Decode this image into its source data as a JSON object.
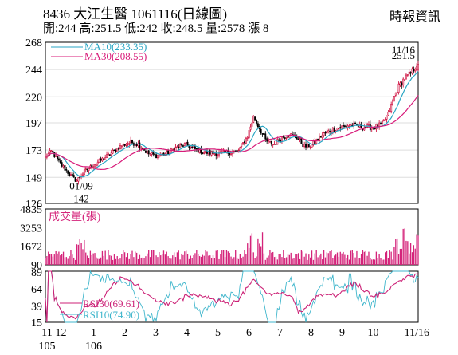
{
  "header": {
    "title": "8436  大江生醫 1061116(日線圖)",
    "source": "時報資訊",
    "ohlc_line": "開:244 高:251.5 低:242 收:248.5 量:2578 漲 8"
  },
  "colors": {
    "up": "#cc0033",
    "down": "#000000",
    "ma10": "#2aa6c4",
    "ma30": "#d81b7a",
    "volume": "#d4237a",
    "rsi10": "#3fb6cc",
    "rsi30": "#cc2277",
    "grid": "#dddddd",
    "frame": "#000000"
  },
  "chart_data": [
    {
      "type": "candlestick",
      "title": "",
      "ylim": [
        126,
        268
      ],
      "yticks": [
        "268",
        "244",
        "220",
        "197",
        "173",
        "149",
        "126"
      ],
      "grid": true,
      "legend": [
        {
          "key": "ma10",
          "label": "MA10(233.35)"
        },
        {
          "key": "ma30",
          "label": "MA30(208.55)"
        }
      ],
      "annotations": [
        {
          "text": "11/16",
          "x": 11.95,
          "y": 261
        },
        {
          "text": "251.5",
          "x": 11.95,
          "y": 256
        },
        {
          "text": "01/09",
          "x": 1.0,
          "y": 141
        },
        {
          "text": "142",
          "x": 1.0,
          "y": 130
        }
      ],
      "anchors": [
        {
          "x": 0.0,
          "y": 167
        },
        {
          "x": 0.2,
          "y": 172
        },
        {
          "x": 0.45,
          "y": 162
        },
        {
          "x": 0.8,
          "y": 151
        },
        {
          "x": 1.0,
          "y": 146
        },
        {
          "x": 1.25,
          "y": 154
        },
        {
          "x": 1.55,
          "y": 160
        },
        {
          "x": 2.0,
          "y": 168
        },
        {
          "x": 2.45,
          "y": 177
        },
        {
          "x": 2.75,
          "y": 180
        },
        {
          "x": 3.0,
          "y": 178
        },
        {
          "x": 3.3,
          "y": 170
        },
        {
          "x": 3.6,
          "y": 168
        },
        {
          "x": 3.9,
          "y": 170
        },
        {
          "x": 4.2,
          "y": 175
        },
        {
          "x": 4.5,
          "y": 178
        },
        {
          "x": 4.8,
          "y": 174
        },
        {
          "x": 5.1,
          "y": 171
        },
        {
          "x": 5.5,
          "y": 170
        },
        {
          "x": 5.9,
          "y": 171
        },
        {
          "x": 6.2,
          "y": 172
        },
        {
          "x": 6.5,
          "y": 185
        },
        {
          "x": 6.7,
          "y": 202
        },
        {
          "x": 6.9,
          "y": 192
        },
        {
          "x": 7.1,
          "y": 181
        },
        {
          "x": 7.35,
          "y": 178
        },
        {
          "x": 7.6,
          "y": 184
        },
        {
          "x": 7.85,
          "y": 187
        },
        {
          "x": 8.1,
          "y": 184
        },
        {
          "x": 8.35,
          "y": 176
        },
        {
          "x": 8.6,
          "y": 178
        },
        {
          "x": 8.9,
          "y": 186
        },
        {
          "x": 9.2,
          "y": 191
        },
        {
          "x": 9.5,
          "y": 193
        },
        {
          "x": 9.8,
          "y": 195
        },
        {
          "x": 10.1,
          "y": 194
        },
        {
          "x": 10.35,
          "y": 193
        },
        {
          "x": 10.6,
          "y": 193
        },
        {
          "x": 10.85,
          "y": 196
        },
        {
          "x": 11.05,
          "y": 205
        },
        {
          "x": 11.2,
          "y": 218
        },
        {
          "x": 11.35,
          "y": 228
        },
        {
          "x": 11.55,
          "y": 236
        },
        {
          "x": 11.75,
          "y": 240
        },
        {
          "x": 11.95,
          "y": 248.5
        }
      ]
    },
    {
      "type": "bar",
      "title": "成交量(張)",
      "ylim": [
        90,
        4835
      ],
      "yticks": [
        "4835",
        "3253",
        "1672",
        "90"
      ],
      "description": "daily trading volume in lots"
    },
    {
      "type": "line",
      "title": "RSI",
      "ylim": [
        15,
        90
      ],
      "yticks": [
        "89",
        "64",
        "39",
        "15"
      ],
      "legend": [
        {
          "key": "rsi30",
          "label": "RSI30(69.61)"
        },
        {
          "key": "rsi10",
          "label": "RSI10(74.90)"
        }
      ]
    }
  ],
  "x_axis": {
    "domain": [
      0,
      12
    ],
    "ticks": [
      {
        "x": 0.0,
        "label": "11",
        "sub": "105"
      },
      {
        "x": 0.5,
        "label": "12",
        "sub": ""
      },
      {
        "x": 1.55,
        "label": "1",
        "sub": "106"
      },
      {
        "x": 2.55,
        "label": "2",
        "sub": ""
      },
      {
        "x": 3.55,
        "label": "3",
        "sub": ""
      },
      {
        "x": 4.55,
        "label": "4",
        "sub": ""
      },
      {
        "x": 5.55,
        "label": "5",
        "sub": ""
      },
      {
        "x": 6.55,
        "label": "6",
        "sub": ""
      },
      {
        "x": 7.55,
        "label": "7",
        "sub": ""
      },
      {
        "x": 8.55,
        "label": "8",
        "sub": ""
      },
      {
        "x": 9.55,
        "label": "9",
        "sub": ""
      },
      {
        "x": 10.55,
        "label": "10",
        "sub": ""
      },
      {
        "x": 11.95,
        "label": "11/16",
        "sub": ""
      }
    ]
  }
}
